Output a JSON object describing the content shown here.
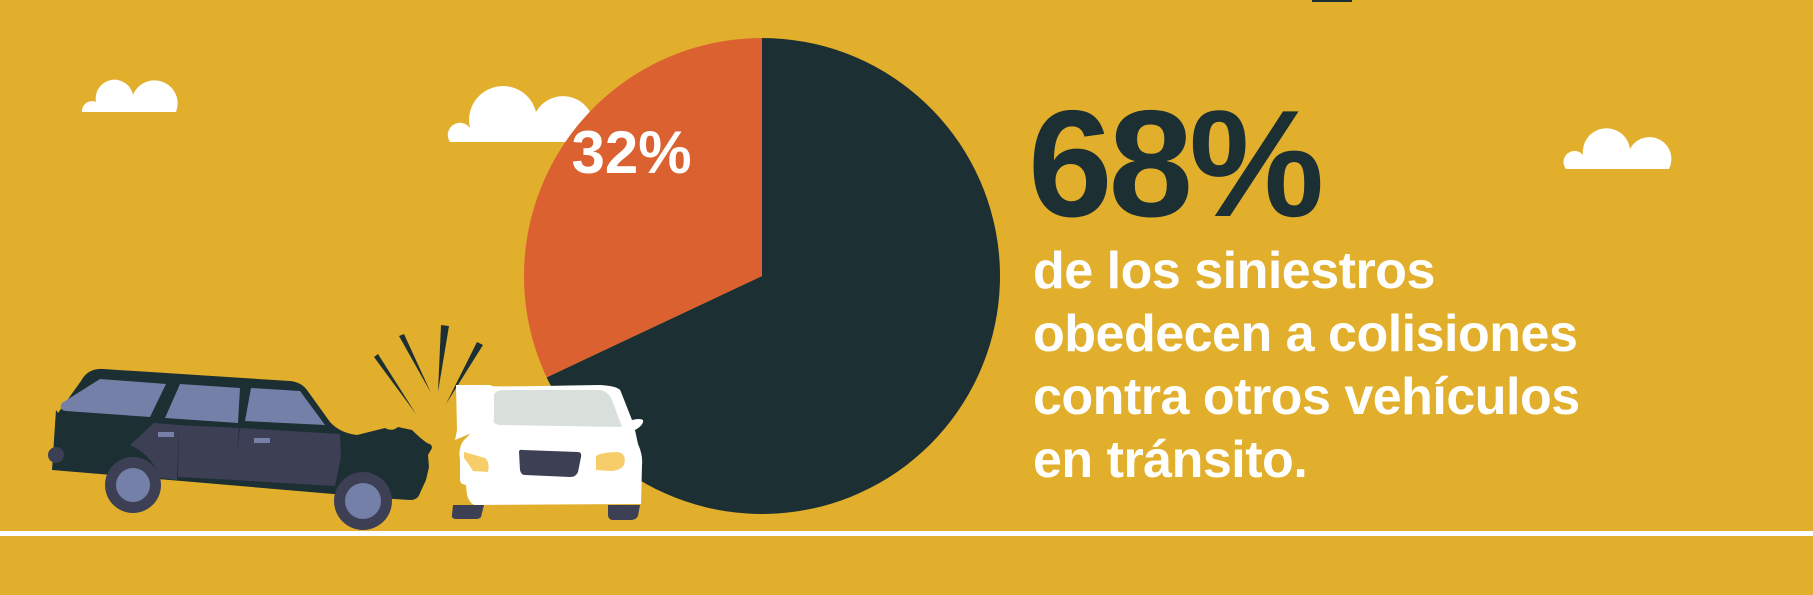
{
  "colors": {
    "background": "#E2AF2D",
    "dark": "#1C2F33",
    "orange": "#DB6131",
    "white": "#FFFFFF"
  },
  "headline": {
    "value": "68%",
    "lines": [
      "de los siniestros",
      "obedecen a colisiones",
      "contra otros vehículos",
      "en tránsito."
    ]
  },
  "chart_data": {
    "type": "pie",
    "slices": [
      {
        "value": 68,
        "label": "",
        "color": "#1C2F33"
      },
      {
        "value": 32,
        "label": "32%",
        "color": "#DB6131"
      }
    ],
    "start": "12 o'clock, clockwise",
    "legend": "none"
  },
  "illustration": {
    "icons": [
      "cloud-icon",
      "dark-station-wagon-icon",
      "white-car-icon",
      "impact-lines-icon",
      "road-line"
    ]
  }
}
